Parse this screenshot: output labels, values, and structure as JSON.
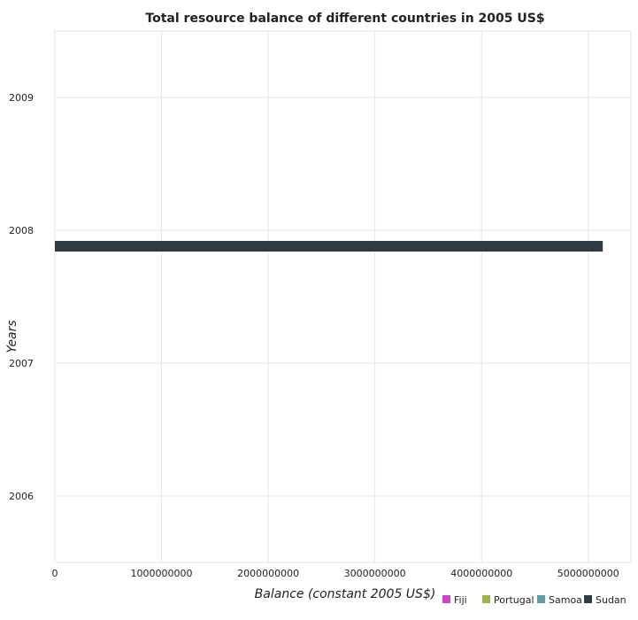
{
  "chart_data": {
    "type": "bar",
    "orientation": "horizontal",
    "title": "Total resource balance of different countries in 2005 US$",
    "xlabel": "Balance (constant 2005 US$)",
    "ylabel": "Years",
    "categories": [
      "2006",
      "2007",
      "2008",
      "2009"
    ],
    "series": [
      {
        "name": "Fiji",
        "color": "#cc44cc",
        "values": [
          0,
          0,
          0,
          0
        ]
      },
      {
        "name": "Portugal",
        "color": "#99b54a",
        "values": [
          0,
          0,
          0,
          0
        ]
      },
      {
        "name": "Samoa",
        "color": "#5a9ea6",
        "values": [
          0,
          0,
          0,
          0
        ]
      },
      {
        "name": "Sudan",
        "color": "#2f3d42",
        "values": [
          0,
          0,
          5136000000,
          0
        ]
      }
    ],
    "x_ticks": [
      "0",
      "1000000000",
      "2000000000",
      "3000000000",
      "4000000000",
      "5000000000"
    ],
    "x_tick_values": [
      0,
      1000000000,
      2000000000,
      3000000000,
      4000000000,
      5000000000
    ],
    "xlim": [
      0,
      5400000000
    ],
    "grid": true,
    "legend_position": "bottom-right"
  }
}
